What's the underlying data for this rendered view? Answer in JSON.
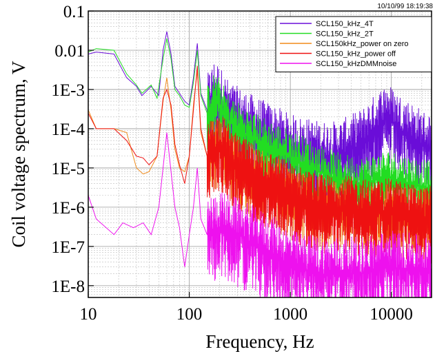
{
  "timestamp": "10/10/99 18:19:38",
  "chart_data": {
    "type": "line",
    "title": "",
    "xlabel": "Frequency, Hz",
    "ylabel": "Coil voltage spectrum, V",
    "x_scale": "log",
    "y_scale": "log",
    "xlim": [
      10,
      25000
    ],
    "ylim": [
      5e-09,
      0.1
    ],
    "grid": true,
    "legend_position": "top-right",
    "x_ticks": [
      {
        "value": 10,
        "label": "10"
      },
      {
        "value": 100,
        "label": "100"
      },
      {
        "value": 1000,
        "label": "1000"
      },
      {
        "value": 10000,
        "label": "10000"
      }
    ],
    "y_ticks": [
      {
        "value": 0.1,
        "label": "0.1"
      },
      {
        "value": 0.01,
        "label": "0.01"
      },
      {
        "value": 0.001,
        "label": "1E-3"
      },
      {
        "value": 0.0001,
        "label": "1E-4"
      },
      {
        "value": 1e-05,
        "label": "1E-5"
      },
      {
        "value": 1e-06,
        "label": "1E-6"
      },
      {
        "value": 1e-07,
        "label": "1E-7"
      },
      {
        "value": 1e-08,
        "label": "1E-8"
      }
    ],
    "series": [
      {
        "name": "SCL150_kHz_4T",
        "color": "#6a0dd8",
        "x": [
          10,
          12,
          18,
          24,
          30,
          34,
          42,
          50,
          55,
          60,
          66,
          72,
          80,
          90,
          100,
          110,
          120,
          130,
          150,
          180,
          250,
          400,
          700,
          1000,
          2000,
          3000,
          5000,
          7000,
          9000,
          12000,
          16000,
          20000,
          25000
        ],
        "y": [
          0.008,
          0.009,
          0.008,
          0.002,
          0.0012,
          0.0007,
          0.0012,
          0.0007,
          0.01,
          0.03,
          0.008,
          0.0012,
          0.0008,
          0.0005,
          0.0004,
          0.002,
          0.015,
          0.0008,
          0.0003,
          0.0008,
          0.0002,
          0.0001,
          5e-05,
          3e-05,
          2e-05,
          2e-05,
          4e-05,
          0.0001,
          0.0002,
          0.0001,
          6e-05,
          4e-05,
          3e-05
        ],
        "noise_from": 150,
        "noise_spread": 8,
        "noise_density": 900
      },
      {
        "name": "SCL150_kHz_2T",
        "color": "#22dd22",
        "x": [
          10,
          12,
          18,
          24,
          30,
          34,
          42,
          48,
          55,
          60,
          66,
          72,
          80,
          90,
          100,
          110,
          120,
          130,
          150,
          180,
          250,
          400,
          700,
          1000,
          2000,
          3000,
          5000,
          7000,
          9000,
          12000,
          16000,
          20000,
          25000
        ],
        "y": [
          0.009,
          0.011,
          0.01,
          0.0025,
          0.0013,
          0.0008,
          0.0013,
          0.0006,
          0.006,
          0.02,
          0.006,
          0.001,
          0.0007,
          0.0004,
          0.00035,
          0.0015,
          0.01,
          0.0007,
          0.00025,
          0.0006,
          0.00015,
          6e-05,
          3e-05,
          2e-05,
          8e-06,
          5e-06,
          4e-06,
          5e-06,
          6e-06,
          5e-06,
          4e-06,
          3.5e-06,
          3e-06
        ],
        "noise_from": 150,
        "noise_spread": 5,
        "noise_density": 700
      },
      {
        "name": "SCL150kHz_power on zero",
        "color": "#f08a1a",
        "x": [
          10,
          12,
          18,
          24,
          30,
          35,
          40,
          48,
          55,
          60,
          66,
          72,
          80,
          90,
          100,
          110,
          120,
          130,
          150,
          200,
          300,
          500,
          800,
          1000,
          2000,
          5000,
          10000,
          25000
        ],
        "y": [
          0.0003,
          0.0001,
          0.0001,
          8e-05,
          1e-05,
          7e-06,
          8e-06,
          2e-05,
          0.0005,
          0.002,
          0.0003,
          3e-05,
          1e-05,
          8e-06,
          2e-05,
          0.0004,
          0.003,
          8e-05,
          2e-05,
          4e-05,
          1e-05,
          5e-06,
          3e-06,
          2e-06,
          1e-06,
          8e-07,
          6e-07,
          5e-07
        ],
        "noise_from": 150,
        "noise_spread": 6,
        "noise_density": 600
      },
      {
        "name": "SCL150_kHz_power off",
        "color": "#ee1111",
        "x": [
          10,
          12,
          18,
          24,
          30,
          35,
          40,
          48,
          55,
          60,
          66,
          72,
          80,
          90,
          100,
          110,
          120,
          130,
          150,
          200,
          300,
          500,
          800,
          1000,
          2000,
          3000,
          5000,
          7000,
          10000,
          15000,
          20000,
          25000
        ],
        "y": [
          0.00025,
          0.0001,
          0.0001,
          5e-05,
          2e-05,
          1.8e-05,
          1.2e-05,
          2e-05,
          0.0006,
          0.001,
          0.0004,
          4e-05,
          1.2e-05,
          4e-06,
          2e-05,
          0.0003,
          0.004,
          0.0001,
          2e-05,
          4e-05,
          1e-05,
          5e-06,
          3e-06,
          2e-06,
          1e-06,
          1e-06,
          8e-07,
          7e-07,
          8e-07,
          6e-07,
          5e-07,
          5e-07
        ],
        "noise_from": 150,
        "noise_spread": 7,
        "noise_density": 1100
      },
      {
        "name": "SCL150_kHzDMMnoise",
        "color": "#ee11ee",
        "x": [
          10,
          12,
          18,
          22,
          28,
          35,
          42,
          50,
          55,
          60,
          66,
          72,
          80,
          90,
          100,
          110,
          120,
          130,
          150,
          200,
          300,
          500,
          800,
          1000,
          2000,
          5000,
          10000,
          25000
        ],
        "y": [
          2e-06,
          5e-07,
          2e-07,
          4e-07,
          3e-07,
          4e-07,
          2e-07,
          1e-06,
          1e-05,
          8e-05,
          8e-06,
          1e-06,
          3e-07,
          3e-08,
          2e-07,
          1e-06,
          1e-05,
          5e-07,
          2e-07,
          3e-07,
          2e-07,
          1e-07,
          5e-08,
          3e-08,
          2e-08,
          2e-08,
          3e-08,
          2e-08
        ],
        "noise_from": 150,
        "noise_spread": 9,
        "noise_density": 900
      }
    ]
  }
}
